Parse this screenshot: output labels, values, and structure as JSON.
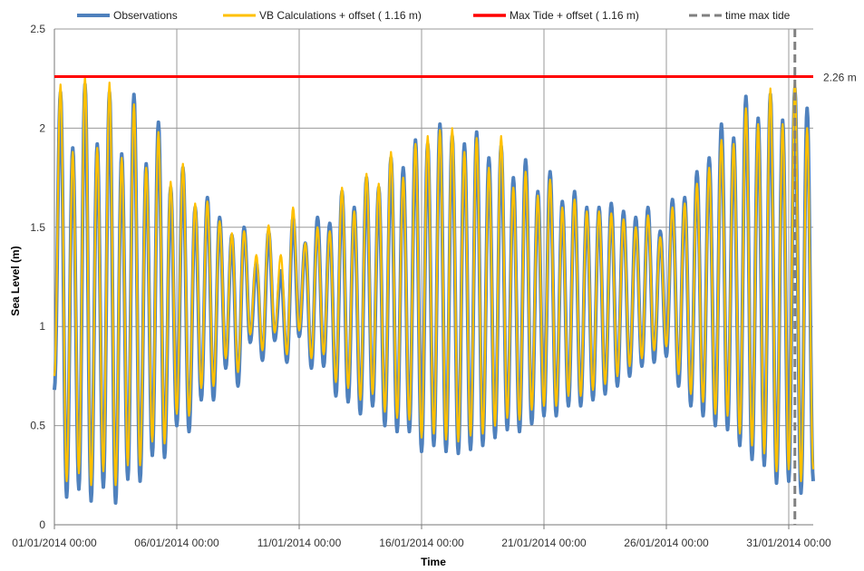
{
  "chart_data": {
    "type": "line",
    "xlabel": "Time",
    "ylabel": "Sea Level (m)",
    "ylim": [
      0,
      2.5
    ],
    "yticks": [
      "0",
      "0.5",
      "1",
      "1.5",
      "2",
      "2.5"
    ],
    "xlim": [
      "01/01/2014 00:00",
      "01/02/2014 00:00"
    ],
    "xticks": [
      "01/01/2014 00:00",
      "06/01/2014 00:00",
      "11/01/2014 00:00",
      "16/01/2014 00:00",
      "21/01/2014 00:00",
      "26/01/2014 00:00",
      "31/01/2014 00:00"
    ],
    "grid": true,
    "legend_position": "top",
    "series": [
      {
        "name": "Observations",
        "color": "#4f81bd",
        "extremes": [
          [
            "01/01/2014 00:00",
            0.68
          ],
          [
            "01/01/2014 06:00",
            2.18
          ],
          [
            "01/01/2014 12:00",
            0.14
          ],
          [
            "01/01/2014 18:00",
            1.9
          ],
          [
            "02/01/2014 00:00",
            0.18
          ],
          [
            "02/01/2014 06:00",
            2.22
          ],
          [
            "02/01/2014 12:00",
            0.12
          ],
          [
            "02/01/2014 18:00",
            1.92
          ],
          [
            "03/01/2014 00:00",
            0.19
          ],
          [
            "03/01/2014 06:00",
            2.18
          ],
          [
            "03/01/2014 12:00",
            0.11
          ],
          [
            "03/01/2014 18:00",
            1.87
          ],
          [
            "04/01/2014 00:00",
            0.23
          ],
          [
            "04/01/2014 06:00",
            2.17
          ],
          [
            "04/01/2014 12:00",
            0.22
          ],
          [
            "04/01/2014 18:00",
            1.82
          ],
          [
            "05/01/2014 00:00",
            0.35
          ],
          [
            "05/01/2014 06:00",
            2.03
          ],
          [
            "05/01/2014 12:00",
            0.34
          ],
          [
            "05/01/2014 18:00",
            1.7
          ],
          [
            "06/01/2014 00:00",
            0.5
          ],
          [
            "06/01/2014 06:00",
            1.8
          ],
          [
            "06/01/2014 12:00",
            0.47
          ],
          [
            "06/01/2014 18:00",
            1.6
          ],
          [
            "07/01/2014 00:00",
            0.63
          ],
          [
            "07/01/2014 06:00",
            1.65
          ],
          [
            "07/01/2014 12:00",
            0.63
          ],
          [
            "07/01/2014 18:00",
            1.55
          ],
          [
            "08/01/2014 00:00",
            0.79
          ],
          [
            "08/01/2014 06:00",
            1.46
          ],
          [
            "08/01/2014 12:00",
            0.7
          ],
          [
            "08/01/2014 18:00",
            1.5
          ],
          [
            "09/01/2014 00:00",
            0.92
          ],
          [
            "09/01/2014 06:00",
            1.32
          ],
          [
            "09/01/2014 12:00",
            0.83
          ],
          [
            "09/01/2014 18:00",
            1.48
          ],
          [
            "10/01/2014 00:00",
            0.93
          ],
          [
            "10/01/2014 06:00",
            1.28
          ],
          [
            "10/01/2014 12:00",
            0.82
          ],
          [
            "10/01/2014 18:00",
            1.55
          ],
          [
            "11/01/2014 00:00",
            0.95
          ],
          [
            "11/01/2014 06:00",
            1.42
          ],
          [
            "11/01/2014 12:00",
            0.79
          ],
          [
            "11/01/2014 18:00",
            1.55
          ],
          [
            "12/01/2014 00:00",
            0.8
          ],
          [
            "12/01/2014 06:00",
            1.52
          ],
          [
            "12/01/2014 12:00",
            0.65
          ],
          [
            "12/01/2014 18:00",
            1.68
          ],
          [
            "13/01/2014 00:00",
            0.62
          ],
          [
            "13/01/2014 06:00",
            1.6
          ],
          [
            "13/01/2014 12:00",
            0.56
          ],
          [
            "13/01/2014 18:00",
            1.75
          ],
          [
            "14/01/2014 00:00",
            0.6
          ],
          [
            "14/01/2014 06:00",
            1.7
          ],
          [
            "14/01/2014 12:00",
            0.5
          ],
          [
            "14/01/2014 18:00",
            1.85
          ],
          [
            "15/01/2014 00:00",
            0.47
          ],
          [
            "15/01/2014 06:00",
            1.8
          ],
          [
            "15/01/2014 12:00",
            0.47
          ],
          [
            "15/01/2014 18:00",
            1.94
          ],
          [
            "16/01/2014 00:00",
            0.37
          ],
          [
            "16/01/2014 06:00",
            1.92
          ],
          [
            "16/01/2014 12:00",
            0.4
          ],
          [
            "16/01/2014 18:00",
            2.02
          ],
          [
            "17/01/2014 00:00",
            0.37
          ],
          [
            "17/01/2014 06:00",
            1.96
          ],
          [
            "17/01/2014 12:00",
            0.36
          ],
          [
            "17/01/2014 18:00",
            1.92
          ],
          [
            "18/01/2014 00:00",
            0.38
          ],
          [
            "18/01/2014 06:00",
            1.98
          ],
          [
            "18/01/2014 12:00",
            0.4
          ],
          [
            "18/01/2014 18:00",
            1.85
          ],
          [
            "19/01/2014 00:00",
            0.44
          ],
          [
            "19/01/2014 06:00",
            1.91
          ],
          [
            "19/01/2014 12:00",
            0.48
          ],
          [
            "19/01/2014 18:00",
            1.75
          ],
          [
            "20/01/2014 00:00",
            0.47
          ],
          [
            "20/01/2014 06:00",
            1.84
          ],
          [
            "20/01/2014 12:00",
            0.51
          ],
          [
            "20/01/2014 18:00",
            1.68
          ],
          [
            "21/01/2014 00:00",
            0.55
          ],
          [
            "21/01/2014 06:00",
            1.78
          ],
          [
            "21/01/2014 12:00",
            0.55
          ],
          [
            "21/01/2014 18:00",
            1.63
          ],
          [
            "22/01/2014 00:00",
            0.6
          ],
          [
            "22/01/2014 06:00",
            1.68
          ],
          [
            "22/01/2014 12:00",
            0.6
          ],
          [
            "22/01/2014 18:00",
            1.6
          ],
          [
            "23/01/2014 00:00",
            0.63
          ],
          [
            "23/01/2014 06:00",
            1.6
          ],
          [
            "23/01/2014 12:00",
            0.66
          ],
          [
            "23/01/2014 18:00",
            1.62
          ],
          [
            "24/01/2014 00:00",
            0.7
          ],
          [
            "24/01/2014 06:00",
            1.58
          ],
          [
            "24/01/2014 12:00",
            0.75
          ],
          [
            "24/01/2014 18:00",
            1.55
          ],
          [
            "25/01/2014 00:00",
            0.8
          ],
          [
            "25/01/2014 06:00",
            1.6
          ],
          [
            "25/01/2014 12:00",
            0.82
          ],
          [
            "25/01/2014 18:00",
            1.48
          ],
          [
            "26/01/2014 00:00",
            0.85
          ],
          [
            "26/01/2014 06:00",
            1.64
          ],
          [
            "26/01/2014 12:00",
            0.7
          ],
          [
            "26/01/2014 18:00",
            1.65
          ],
          [
            "27/01/2014 00:00",
            0.6
          ],
          [
            "27/01/2014 06:00",
            1.78
          ],
          [
            "27/01/2014 12:00",
            0.55
          ],
          [
            "27/01/2014 18:00",
            1.85
          ],
          [
            "28/01/2014 00:00",
            0.5
          ],
          [
            "28/01/2014 06:00",
            2.02
          ],
          [
            "28/01/2014 12:00",
            0.48
          ],
          [
            "28/01/2014 18:00",
            1.95
          ],
          [
            "29/01/2014 00:00",
            0.4
          ],
          [
            "29/01/2014 06:00",
            2.16
          ],
          [
            "29/01/2014 12:00",
            0.33
          ],
          [
            "29/01/2014 18:00",
            2.05
          ],
          [
            "30/01/2014 00:00",
            0.3
          ],
          [
            "30/01/2014 06:00",
            2.17
          ],
          [
            "30/01/2014 12:00",
            0.21
          ],
          [
            "30/01/2014 18:00",
            2.04
          ],
          [
            "31/01/2014 00:00",
            0.22
          ],
          [
            "31/01/2014 06:00",
            2.2
          ],
          [
            "31/01/2014 12:00",
            0.16
          ],
          [
            "31/01/2014 18:00",
            2.1
          ],
          [
            "01/02/2014 00:00",
            0.22
          ]
        ]
      },
      {
        "name": "VB Calculations + offset ( 1.16 m)",
        "color": "#ffc000",
        "extremes": [
          [
            "01/01/2014 00:00",
            0.75
          ],
          [
            "01/01/2014 06:00",
            2.22
          ],
          [
            "01/01/2014 12:00",
            0.22
          ],
          [
            "01/01/2014 18:00",
            1.88
          ],
          [
            "02/01/2014 00:00",
            0.26
          ],
          [
            "02/01/2014 06:00",
            2.26
          ],
          [
            "02/01/2014 12:00",
            0.2
          ],
          [
            "02/01/2014 18:00",
            1.9
          ],
          [
            "03/01/2014 00:00",
            0.27
          ],
          [
            "03/01/2014 06:00",
            2.23
          ],
          [
            "03/01/2014 12:00",
            0.2
          ],
          [
            "03/01/2014 18:00",
            1.85
          ],
          [
            "04/01/2014 00:00",
            0.3
          ],
          [
            "04/01/2014 06:00",
            2.12
          ],
          [
            "04/01/2014 12:00",
            0.3
          ],
          [
            "04/01/2014 18:00",
            1.8
          ],
          [
            "05/01/2014 00:00",
            0.42
          ],
          [
            "05/01/2014 06:00",
            1.98
          ],
          [
            "05/01/2014 12:00",
            0.41
          ],
          [
            "05/01/2014 18:00",
            1.73
          ],
          [
            "06/01/2014 00:00",
            0.56
          ],
          [
            "06/01/2014 06:00",
            1.82
          ],
          [
            "06/01/2014 12:00",
            0.55
          ],
          [
            "06/01/2014 18:00",
            1.62
          ],
          [
            "07/01/2014 00:00",
            0.69
          ],
          [
            "07/01/2014 06:00",
            1.63
          ],
          [
            "07/01/2014 12:00",
            0.7
          ],
          [
            "07/01/2014 18:00",
            1.53
          ],
          [
            "08/01/2014 00:00",
            0.84
          ],
          [
            "08/01/2014 06:00",
            1.47
          ],
          [
            "08/01/2014 12:00",
            0.77
          ],
          [
            "08/01/2014 18:00",
            1.48
          ],
          [
            "09/01/2014 00:00",
            0.96
          ],
          [
            "09/01/2014 06:00",
            1.36
          ],
          [
            "09/01/2014 12:00",
            0.88
          ],
          [
            "09/01/2014 18:00",
            1.51
          ],
          [
            "10/01/2014 00:00",
            0.97
          ],
          [
            "10/01/2014 06:00",
            1.36
          ],
          [
            "10/01/2014 12:00",
            0.86
          ],
          [
            "10/01/2014 18:00",
            1.6
          ],
          [
            "11/01/2014 00:00",
            0.98
          ],
          [
            "11/01/2014 06:00",
            1.42
          ],
          [
            "11/01/2014 12:00",
            0.84
          ],
          [
            "11/01/2014 18:00",
            1.5
          ],
          [
            "12/01/2014 00:00",
            0.86
          ],
          [
            "12/01/2014 06:00",
            1.48
          ],
          [
            "12/01/2014 12:00",
            0.72
          ],
          [
            "12/01/2014 18:00",
            1.7
          ],
          [
            "13/01/2014 00:00",
            0.69
          ],
          [
            "13/01/2014 06:00",
            1.58
          ],
          [
            "13/01/2014 12:00",
            0.63
          ],
          [
            "13/01/2014 18:00",
            1.77
          ],
          [
            "14/01/2014 00:00",
            0.66
          ],
          [
            "14/01/2014 06:00",
            1.72
          ],
          [
            "14/01/2014 12:00",
            0.57
          ],
          [
            "14/01/2014 18:00",
            1.88
          ],
          [
            "15/01/2014 00:00",
            0.54
          ],
          [
            "15/01/2014 06:00",
            1.75
          ],
          [
            "15/01/2014 12:00",
            0.53
          ],
          [
            "15/01/2014 18:00",
            1.92
          ],
          [
            "16/01/2014 00:00",
            0.44
          ],
          [
            "16/01/2014 06:00",
            1.96
          ],
          [
            "16/01/2014 12:00",
            0.46
          ],
          [
            "16/01/2014 18:00",
            1.99
          ],
          [
            "17/01/2014 00:00",
            0.43
          ],
          [
            "17/01/2014 06:00",
            2.0
          ],
          [
            "17/01/2014 12:00",
            0.42
          ],
          [
            "17/01/2014 18:00",
            1.88
          ],
          [
            "18/01/2014 00:00",
            0.45
          ],
          [
            "18/01/2014 06:00",
            1.95
          ],
          [
            "18/01/2014 12:00",
            0.46
          ],
          [
            "18/01/2014 18:00",
            1.8
          ],
          [
            "19/01/2014 00:00",
            0.5
          ],
          [
            "19/01/2014 06:00",
            1.96
          ],
          [
            "19/01/2014 12:00",
            0.54
          ],
          [
            "19/01/2014 18:00",
            1.7
          ],
          [
            "20/01/2014 00:00",
            0.53
          ],
          [
            "20/01/2014 06:00",
            1.78
          ],
          [
            "20/01/2014 12:00",
            0.58
          ],
          [
            "20/01/2014 18:00",
            1.66
          ],
          [
            "21/01/2014 00:00",
            0.6
          ],
          [
            "21/01/2014 06:00",
            1.74
          ],
          [
            "21/01/2014 12:00",
            0.6
          ],
          [
            "21/01/2014 18:00",
            1.6
          ],
          [
            "22/01/2014 00:00",
            0.65
          ],
          [
            "22/01/2014 06:00",
            1.64
          ],
          [
            "22/01/2014 12:00",
            0.65
          ],
          [
            "22/01/2014 18:00",
            1.58
          ],
          [
            "23/01/2014 00:00",
            0.68
          ],
          [
            "23/01/2014 06:00",
            1.58
          ],
          [
            "23/01/2014 12:00",
            0.71
          ],
          [
            "23/01/2014 18:00",
            1.57
          ],
          [
            "24/01/2014 00:00",
            0.75
          ],
          [
            "24/01/2014 06:00",
            1.54
          ],
          [
            "24/01/2014 12:00",
            0.8
          ],
          [
            "24/01/2014 18:00",
            1.5
          ],
          [
            "25/01/2014 00:00",
            0.84
          ],
          [
            "25/01/2014 06:00",
            1.56
          ],
          [
            "25/01/2014 12:00",
            0.88
          ],
          [
            "25/01/2014 18:00",
            1.45
          ],
          [
            "26/01/2014 00:00",
            0.9
          ],
          [
            "26/01/2014 06:00",
            1.6
          ],
          [
            "26/01/2014 12:00",
            0.76
          ],
          [
            "26/01/2014 18:00",
            1.62
          ],
          [
            "27/01/2014 00:00",
            0.66
          ],
          [
            "27/01/2014 06:00",
            1.72
          ],
          [
            "27/01/2014 12:00",
            0.62
          ],
          [
            "27/01/2014 18:00",
            1.8
          ],
          [
            "28/01/2014 00:00",
            0.56
          ],
          [
            "28/01/2014 06:00",
            1.94
          ],
          [
            "28/01/2014 12:00",
            0.55
          ],
          [
            "28/01/2014 18:00",
            1.92
          ],
          [
            "29/01/2014 00:00",
            0.46
          ],
          [
            "29/01/2014 06:00",
            2.1
          ],
          [
            "29/01/2014 12:00",
            0.4
          ],
          [
            "29/01/2014 18:00",
            2.02
          ],
          [
            "30/01/2014 00:00",
            0.36
          ],
          [
            "30/01/2014 06:00",
            2.2
          ],
          [
            "30/01/2014 12:00",
            0.27
          ],
          [
            "30/01/2014 18:00",
            2.02
          ],
          [
            "31/01/2014 00:00",
            0.28
          ],
          [
            "31/01/2014 06:00",
            2.24
          ],
          [
            "31/01/2014 12:00",
            0.22
          ],
          [
            "31/01/2014 18:00",
            2.0
          ],
          [
            "01/02/2014 00:00",
            0.28
          ]
        ]
      },
      {
        "name": "Max Tide + offset ( 1.16 m)",
        "color": "#ff0000",
        "value": 2.26,
        "label": "2.26 m"
      },
      {
        "name": "time max tide",
        "color": "#808080",
        "x": "31/01/2014 06:00"
      }
    ]
  }
}
